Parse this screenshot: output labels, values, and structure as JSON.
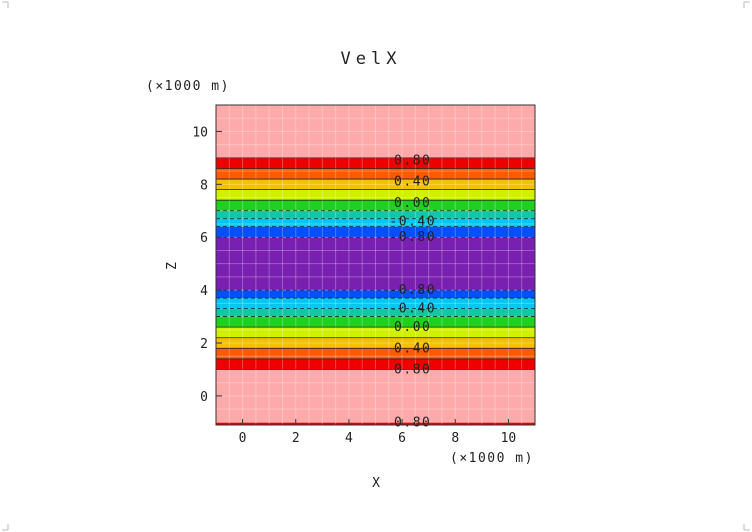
{
  "chart_data": {
    "type": "heatmap",
    "title": "VelX",
    "xlabel": "X",
    "ylabel": "Z",
    "x_unit": "(×1000 m)",
    "y_unit": "(×1000 m)",
    "xlim": [
      -1,
      11
    ],
    "ylim": [
      -1.1,
      11
    ],
    "x_ticks": [
      0,
      2,
      4,
      6,
      8,
      10
    ],
    "y_ticks": [
      0,
      2,
      4,
      6,
      8,
      10
    ],
    "grid": true,
    "bands": [
      {
        "z0": -1.1,
        "z1": -1.0,
        "color": "#e00000"
      },
      {
        "z0": -1.0,
        "z1": 1.0,
        "color": "#ffaaaa"
      },
      {
        "z0": 1.0,
        "z1": 1.4,
        "color": "#ee0000"
      },
      {
        "z0": 1.4,
        "z1": 1.8,
        "color": "#ff5a00"
      },
      {
        "z0": 1.8,
        "z1": 2.2,
        "color": "#f5c000"
      },
      {
        "z0": 2.2,
        "z1": 2.6,
        "color": "#d0f000"
      },
      {
        "z0": 2.6,
        "z1": 3.0,
        "color": "#20d020"
      },
      {
        "z0": 3.0,
        "z1": 3.3,
        "color": "#10c8a8"
      },
      {
        "z0": 3.3,
        "z1": 3.7,
        "color": "#00c8f0"
      },
      {
        "z0": 3.7,
        "z1": 4.0,
        "color": "#0050ff"
      },
      {
        "z0": 4.0,
        "z1": 6.0,
        "color": "#7a20b0"
      },
      {
        "z0": 6.0,
        "z1": 6.4,
        "color": "#0050ff"
      },
      {
        "z0": 6.4,
        "z1": 6.7,
        "color": "#00c8f0"
      },
      {
        "z0": 6.7,
        "z1": 7.0,
        "color": "#10c8a8"
      },
      {
        "z0": 7.0,
        "z1": 7.4,
        "color": "#20d020"
      },
      {
        "z0": 7.4,
        "z1": 7.8,
        "color": "#d0f000"
      },
      {
        "z0": 7.8,
        "z1": 8.2,
        "color": "#f5c000"
      },
      {
        "z0": 8.2,
        "z1": 8.6,
        "color": "#ff5a00"
      },
      {
        "z0": 8.6,
        "z1": 9.0,
        "color": "#ee0000"
      },
      {
        "z0": 9.0,
        "z1": 11.0,
        "color": "#ffaaaa"
      }
    ],
    "contour_lines": [
      1.0,
      1.4,
      1.8,
      2.2,
      2.6,
      3.0,
      3.3,
      3.7,
      4.0,
      6.0,
      6.4,
      6.7,
      7.0,
      7.4,
      7.8,
      8.2,
      8.6,
      9.0
    ],
    "contour_labels": [
      {
        "text": "0.80",
        "x": 6.4,
        "z": 8.9
      },
      {
        "text": "0.40",
        "x": 6.4,
        "z": 8.1
      },
      {
        "text": "0.00",
        "x": 6.4,
        "z": 7.3
      },
      {
        "text": "-0.40",
        "x": 6.4,
        "z": 6.6
      },
      {
        "text": "-0.80",
        "x": 6.4,
        "z": 6.0
      },
      {
        "text": "-0.80",
        "x": 6.4,
        "z": 4.0
      },
      {
        "text": "-0.40",
        "x": 6.4,
        "z": 3.3
      },
      {
        "text": "0.00",
        "x": 6.4,
        "z": 2.6
      },
      {
        "text": "0.40",
        "x": 6.4,
        "z": 1.8
      },
      {
        "text": "0.80",
        "x": 6.4,
        "z": 1.0
      },
      {
        "text": "0.80",
        "x": 6.4,
        "z": -1.0
      }
    ]
  }
}
